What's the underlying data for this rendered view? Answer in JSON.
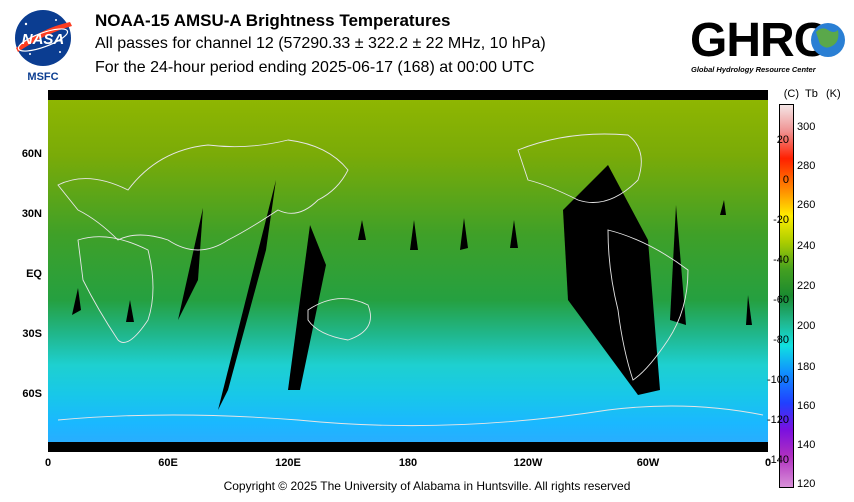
{
  "header": {
    "title": "NOAA-15 AMSU-A Brightness Temperatures",
    "line2": "All passes for channel 12 (57290.33 ± 322.2 ± 22 MHz, 10 hPa)",
    "line3": "For the 24-hour period ending 2025-06-17 (168) at 00:00 UTC"
  },
  "logos": {
    "nasa_text": "NASA",
    "nasa_center": "MSFC",
    "ghrc_text": "GHRC",
    "ghrc_caption": "Global Hydrology Resource Center"
  },
  "map": {
    "lat_labels": [
      "60N",
      "30N",
      "EQ",
      "30S",
      "60S"
    ],
    "lon_labels": [
      "0",
      "60E",
      "120E",
      "180",
      "120W",
      "60W",
      "0"
    ],
    "colors": {
      "polar_cold": "#1ec8ff",
      "mid": "#25b070",
      "warm": "#8ab400",
      "gap": "#000000",
      "coast": "#e0e0e0"
    }
  },
  "colorbar": {
    "header_c": "(C)",
    "header_tb": "Tb",
    "header_k": "(K)",
    "celsius_ticks": [
      "20",
      "0",
      "-20",
      "-40",
      "-60",
      "-80",
      "-100",
      "-120",
      "-140"
    ],
    "kelvin_ticks": [
      "300",
      "280",
      "260",
      "240",
      "220",
      "200",
      "180",
      "160",
      "140",
      "120"
    ],
    "stops": [
      "#f4e6e6",
      "#ff0000",
      "#ffff00",
      "#009900",
      "#00c8c8",
      "#0066ff",
      "#9900cc",
      "#cc66cc"
    ]
  },
  "footer": {
    "copyright": "Copyright © 2025 The University of Alabama in Huntsville.  All rights reserved"
  }
}
